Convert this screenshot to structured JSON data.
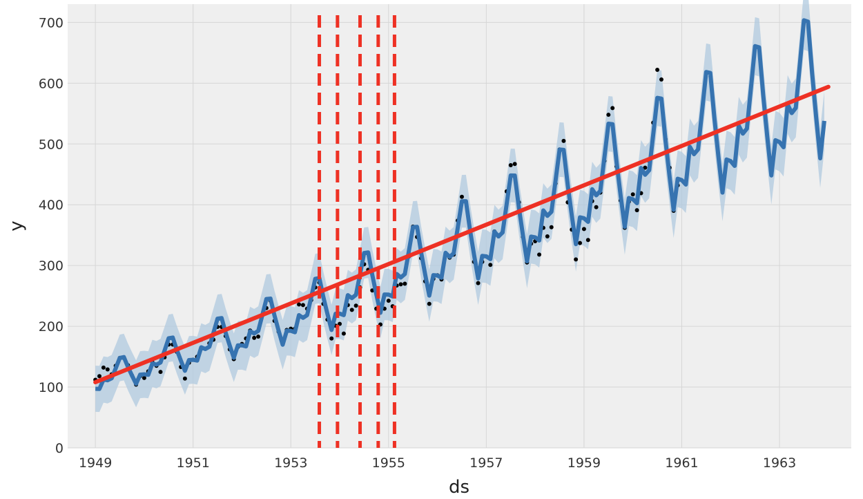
{
  "chart_data": {
    "type": "line",
    "xlabel": "ds",
    "ylabel": "y",
    "xlim": [
      "1948-06-07",
      "1964-06-20"
    ],
    "ylim": [
      0,
      730
    ],
    "grid": true,
    "x_ticks": [
      "1949",
      "1951",
      "1953",
      "1955",
      "1957",
      "1959",
      "1961",
      "1963"
    ],
    "y_ticks": [
      0,
      100,
      200,
      300,
      400,
      500,
      600,
      700
    ],
    "observed": {
      "x": [
        "1949-01",
        "1949-02",
        "1949-03",
        "1949-04",
        "1949-05",
        "1949-06",
        "1949-07",
        "1949-08",
        "1949-09",
        "1949-10",
        "1949-11",
        "1949-12",
        "1950-01",
        "1950-02",
        "1950-03",
        "1950-04",
        "1950-05",
        "1950-06",
        "1950-07",
        "1950-08",
        "1950-09",
        "1950-10",
        "1950-11",
        "1950-12",
        "1951-01",
        "1951-02",
        "1951-03",
        "1951-04",
        "1951-05",
        "1951-06",
        "1951-07",
        "1951-08",
        "1951-09",
        "1951-10",
        "1951-11",
        "1951-12",
        "1952-01",
        "1952-02",
        "1952-03",
        "1952-04",
        "1952-05",
        "1952-06",
        "1952-07",
        "1952-08",
        "1952-09",
        "1952-10",
        "1952-11",
        "1952-12",
        "1953-01",
        "1953-02",
        "1953-03",
        "1953-04",
        "1953-05",
        "1953-06",
        "1953-07",
        "1953-08",
        "1953-09",
        "1953-10",
        "1953-11",
        "1953-12",
        "1954-01",
        "1954-02",
        "1954-03",
        "1954-04",
        "1954-05",
        "1954-06",
        "1954-07",
        "1954-08",
        "1954-09",
        "1954-10",
        "1954-11",
        "1954-12",
        "1955-01",
        "1955-02",
        "1955-03",
        "1955-04",
        "1955-05",
        "1955-06",
        "1955-07",
        "1955-08",
        "1955-09",
        "1955-10",
        "1955-11",
        "1955-12",
        "1956-01",
        "1956-02",
        "1956-03",
        "1956-04",
        "1956-05",
        "1956-06",
        "1956-07",
        "1956-08",
        "1956-09",
        "1956-10",
        "1956-11",
        "1956-12",
        "1957-01",
        "1957-02",
        "1957-03",
        "1957-04",
        "1957-05",
        "1957-06",
        "1957-07",
        "1957-08",
        "1957-09",
        "1957-10",
        "1957-11",
        "1957-12",
        "1958-01",
        "1958-02",
        "1958-03",
        "1958-04",
        "1958-05",
        "1958-06",
        "1958-07",
        "1958-08",
        "1958-09",
        "1958-10",
        "1958-11",
        "1958-12",
        "1959-01",
        "1959-02",
        "1959-03",
        "1959-04",
        "1959-05",
        "1959-06",
        "1959-07",
        "1959-08",
        "1959-09",
        "1959-10",
        "1959-11",
        "1959-12",
        "1960-01",
        "1960-02",
        "1960-03",
        "1960-04",
        "1960-05",
        "1960-06",
        "1960-07",
        "1960-08",
        "1960-09",
        "1960-10",
        "1960-11",
        "1960-12"
      ],
      "y": [
        112,
        118,
        132,
        129,
        121,
        135,
        148,
        148,
        136,
        119,
        104,
        118,
        115,
        126,
        141,
        135,
        125,
        149,
        170,
        170,
        158,
        133,
        114,
        140,
        145,
        150,
        178,
        163,
        172,
        178,
        199,
        199,
        184,
        162,
        146,
        166,
        171,
        180,
        193,
        181,
        183,
        218,
        230,
        242,
        209,
        191,
        172,
        194,
        196,
        196,
        236,
        235,
        229,
        243,
        264,
        272,
        237,
        211,
        180,
        201,
        204,
        188,
        235,
        227,
        234,
        264,
        302,
        293,
        259,
        229,
        203,
        229,
        242,
        233,
        267,
        269,
        270,
        315,
        364,
        347,
        312,
        274,
        237,
        278,
        284,
        277,
        317,
        313,
        318,
        374,
        413,
        405,
        355,
        306,
        271,
        306,
        315,
        301,
        356,
        348,
        355,
        422,
        465,
        467,
        404,
        347,
        305,
        336,
        340,
        318,
        362,
        348,
        363,
        435,
        491,
        505,
        404,
        359,
        310,
        337,
        360,
        342,
        406,
        396,
        420,
        472,
        548,
        559,
        463,
        407,
        362,
        405,
        417,
        391,
        419,
        461,
        472,
        535,
        622,
        606,
        508,
        461,
        390,
        432
      ],
      "color": "#000000"
    },
    "forecast": {
      "name": "yhat",
      "x_start": "1949-01",
      "months": 180,
      "seasonal_factors": [
        0.9,
        0.88,
        1.0,
        0.97,
        0.98,
        1.1,
        1.22,
        1.21,
        1.06,
        0.93,
        0.81,
        0.91
      ],
      "color": "#3673b0",
      "band_color": "#b0c9df"
    },
    "trend": {
      "x": [
        "1949-01-01",
        "1953-06-01",
        "1964-01-01"
      ],
      "y": [
        108,
        225,
        594
      ],
      "color": "#ee3124"
    },
    "changepoints": {
      "x": [
        "1953-08-01",
        "1953-12-15",
        "1954-06-01",
        "1954-10-15",
        "1955-02-15"
      ],
      "color": "#ee3124",
      "style": "dashed"
    }
  }
}
